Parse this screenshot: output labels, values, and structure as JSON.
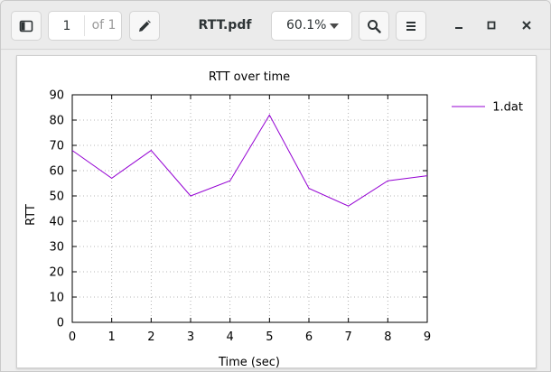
{
  "header": {
    "current_page": "1",
    "page_total": "of 1",
    "title": "RTT.pdf",
    "zoom": "60.1%"
  },
  "icons": {
    "sidebar": "sidebar-icon",
    "annotate": "pencil-icon",
    "search": "search-icon",
    "menu": "hamburger-menu-icon",
    "minimize": "minimize-icon",
    "maximize": "maximize-icon",
    "close": "close-icon"
  },
  "chart_data": {
    "type": "line",
    "title": "RTT over time",
    "xlabel": "Time (sec)",
    "ylabel": "RTT",
    "xlim": [
      0,
      9
    ],
    "ylim": [
      0,
      90
    ],
    "xticks": [
      0,
      1,
      2,
      3,
      4,
      5,
      6,
      7,
      8,
      9
    ],
    "yticks": [
      0,
      10,
      20,
      30,
      40,
      50,
      60,
      70,
      80,
      90
    ],
    "grid": true,
    "legend_position": "top-right, outside plot",
    "series": [
      {
        "name": "1.dat",
        "color": "#9400d3",
        "x": [
          0,
          1,
          2,
          3,
          4,
          5,
          6,
          7,
          8,
          9
        ],
        "y": [
          68,
          57,
          68,
          50,
          56,
          82,
          53,
          46,
          56,
          58
        ]
      }
    ]
  }
}
